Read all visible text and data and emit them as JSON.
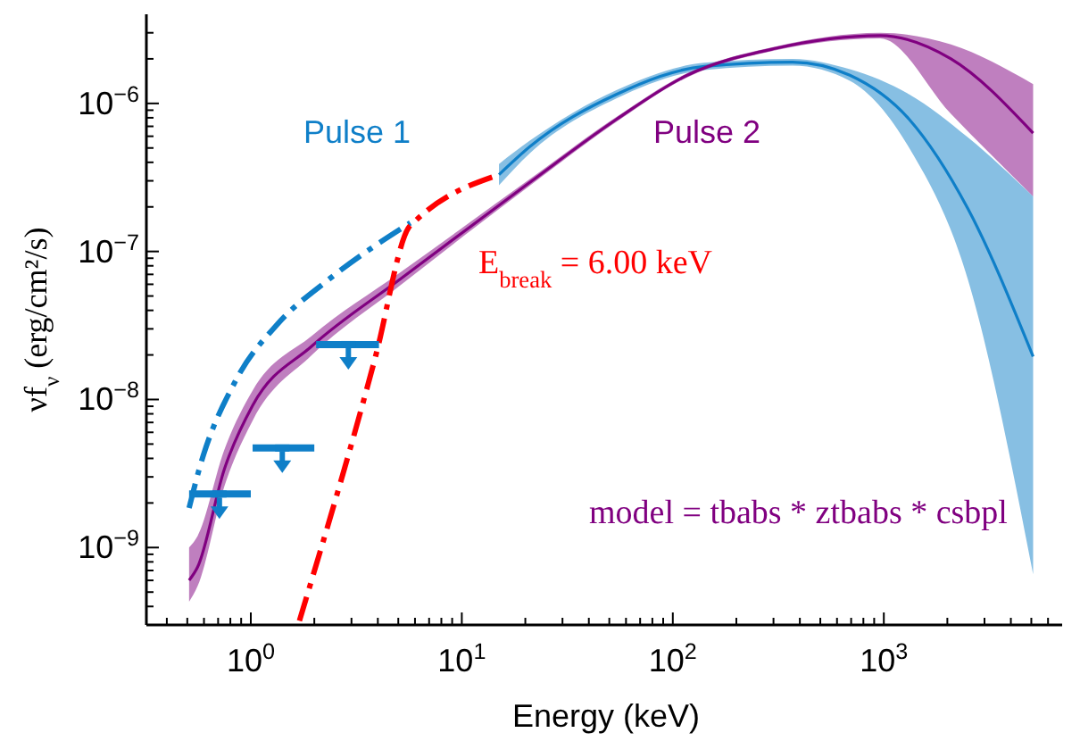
{
  "chart_data": {
    "type": "line",
    "xlabel": "Energy (keV)",
    "ylabel": "νf$_{ν}$ (erg/cm²/s)",
    "log": "xy",
    "xlim": [
      0.32,
      7000
    ],
    "ylim": [
      3e-10,
      4e-06
    ],
    "xticks": [
      {
        "value": 0.4,
        "label": null
      },
      {
        "value": 0.5,
        "label": null
      },
      {
        "value": 0.6,
        "label": null
      },
      {
        "value": 0.7,
        "label": null
      },
      {
        "value": 0.8,
        "label": null
      },
      {
        "value": 0.9,
        "label": null
      },
      {
        "value": 1,
        "label": "10$^{0}$"
      },
      {
        "value": 2,
        "label": null
      },
      {
        "value": 3,
        "label": null
      },
      {
        "value": 4,
        "label": null
      },
      {
        "value": 5,
        "label": null
      },
      {
        "value": 6,
        "label": null
      },
      {
        "value": 7,
        "label": null
      },
      {
        "value": 8,
        "label": null
      },
      {
        "value": 9,
        "label": null
      },
      {
        "value": 10,
        "label": "10$^{1}$"
      },
      {
        "value": 20,
        "label": null
      },
      {
        "value": 30,
        "label": null
      },
      {
        "value": 40,
        "label": null
      },
      {
        "value": 50,
        "label": null
      },
      {
        "value": 60,
        "label": null
      },
      {
        "value": 70,
        "label": null
      },
      {
        "value": 80,
        "label": null
      },
      {
        "value": 90,
        "label": null
      },
      {
        "value": 100,
        "label": "10$^{2}$"
      },
      {
        "value": 200,
        "label": null
      },
      {
        "value": 300,
        "label": null
      },
      {
        "value": 400,
        "label": null
      },
      {
        "value": 500,
        "label": null
      },
      {
        "value": 600,
        "label": null
      },
      {
        "value": 700,
        "label": null
      },
      {
        "value": 800,
        "label": null
      },
      {
        "value": 900,
        "label": null
      },
      {
        "value": 1000,
        "label": "10$^{3}$"
      },
      {
        "value": 2000,
        "label": null
      },
      {
        "value": 3000,
        "label": null
      },
      {
        "value": 4000,
        "label": null
      },
      {
        "value": 5000,
        "label": null
      },
      {
        "value": 6000,
        "label": null
      }
    ],
    "yticks": [
      {
        "value": 4e-10,
        "label": null
      },
      {
        "value": 5e-10,
        "label": null
      },
      {
        "value": 6e-10,
        "label": null
      },
      {
        "value": 7e-10,
        "label": null
      },
      {
        "value": 8e-10,
        "label": null
      },
      {
        "value": 9e-10,
        "label": null
      },
      {
        "value": 1e-09,
        "label": "10$^{−9}$"
      },
      {
        "value": 2e-09,
        "label": null
      },
      {
        "value": 3e-09,
        "label": null
      },
      {
        "value": 4e-09,
        "label": null
      },
      {
        "value": 5e-09,
        "label": null
      },
      {
        "value": 6e-09,
        "label": null
      },
      {
        "value": 7e-09,
        "label": null
      },
      {
        "value": 8e-09,
        "label": null
      },
      {
        "value": 9e-09,
        "label": null
      },
      {
        "value": 1e-08,
        "label": "10$^{−8}$"
      },
      {
        "value": 2e-08,
        "label": null
      },
      {
        "value": 3e-08,
        "label": null
      },
      {
        "value": 4e-08,
        "label": null
      },
      {
        "value": 5e-08,
        "label": null
      },
      {
        "value": 6e-08,
        "label": null
      },
      {
        "value": 7e-08,
        "label": null
      },
      {
        "value": 8e-08,
        "label": null
      },
      {
        "value": 9e-08,
        "label": null
      },
      {
        "value": 1e-07,
        "label": "10$^{−7}$"
      },
      {
        "value": 2e-07,
        "label": null
      },
      {
        "value": 3e-07,
        "label": null
      },
      {
        "value": 4e-07,
        "label": null
      },
      {
        "value": 5e-07,
        "label": null
      },
      {
        "value": 6e-07,
        "label": null
      },
      {
        "value": 7e-07,
        "label": null
      },
      {
        "value": 8e-07,
        "label": null
      },
      {
        "value": 9e-07,
        "label": null
      },
      {
        "value": 1e-06,
        "label": "10$^{−6}$"
      },
      {
        "value": 2e-06,
        "label": null
      },
      {
        "value": 3e-06,
        "label": null
      }
    ],
    "series": [
      {
        "name": "Pulse 1",
        "color": "#0f7fc8",
        "x": [
          15,
          21,
          54,
          141,
          370,
          690,
          1320,
          2500,
          5100
        ],
        "values": [
          3.3e-07,
          5.1e-07,
          1.15e-06,
          1.78e-06,
          1.9e-06,
          1.55e-06,
          7.8e-07,
          1.95e-07,
          1.95e-08
        ],
        "lower": [
          2.8e-07,
          4.6e-07,
          1.08e-06,
          1.68e-06,
          1.8e-06,
          1.42e-06,
          5e-07,
          6.5e-08,
          6.6e-10
        ],
        "upper": [
          3.9e-07,
          5.6e-07,
          1.23e-06,
          1.88e-06,
          2e-06,
          1.7e-06,
          1.15e-06,
          5.9e-07,
          2.35e-07
        ]
      },
      {
        "color": "#0f7fc8",
        "line_style": "dashed",
        "x": [
          0.51,
          0.57,
          0.85,
          1.33,
          2.35,
          5.7
        ],
        "values": [
          1.85e-09,
          3.4e-09,
          1.35e-08,
          3.2e-08,
          6.5e-08,
          1.56e-07
        ]
      },
      {
        "name": "Pulse 2",
        "color": "#800080",
        "x": [
          0.51,
          0.56,
          0.75,
          1.02,
          1.95,
          5.1,
          20.8,
          54,
          117,
          305,
          960,
          2080,
          5100
        ],
        "values": [
          6e-10,
          7.4e-10,
          3.4e-09,
          9.1e-09,
          2.3e-08,
          6.5e-08,
          2.9e-07,
          7.8e-07,
          1.55e-06,
          2.35e-06,
          2.87e-06,
          2e-06,
          6.3e-07
        ],
        "lower": [
          4.3e-10,
          5.5e-10,
          2.6e-09,
          7.2e-09,
          2e-08,
          5.9e-08,
          2.75e-07,
          7.5e-07,
          1.5e-06,
          2.28e-06,
          2.75e-06,
          8.5e-07,
          2.35e-07
        ],
        "upper": [
          1e-09,
          1.2e-09,
          4.6e-09,
          1.15e-08,
          2.7e-08,
          7.2e-08,
          3.05e-07,
          8.1e-07,
          1.6e-06,
          2.42e-06,
          3e-06,
          2.5e-06,
          1.35e-06
        ]
      },
      {
        "color": "#ff0000",
        "line_style": "dashed",
        "x": [
          1.7,
          3.9,
          5.6,
          6.0,
          15
        ],
        "values": [
          3.2e-10,
          1.95e-08,
          1.45e-07,
          1.6e-07,
          3.3e-07
        ]
      },
      {
        "type": "scatter",
        "color": "#0f7fc8",
        "x": [
          0.71,
          1.41,
          2.9
        ],
        "values": [
          2.3e-09,
          4.7e-09,
          2.35e-08
        ],
        "xerrors": [
          [
            0.51,
            1.0
          ],
          [
            1.02,
            2.0
          ],
          [
            2.04,
            4.05
          ]
        ]
      }
    ],
    "annotations": [
      "E$_{break}$ = 6.00 keV",
      "model = tbabs * ztbabs * csbpl"
    ]
  }
}
